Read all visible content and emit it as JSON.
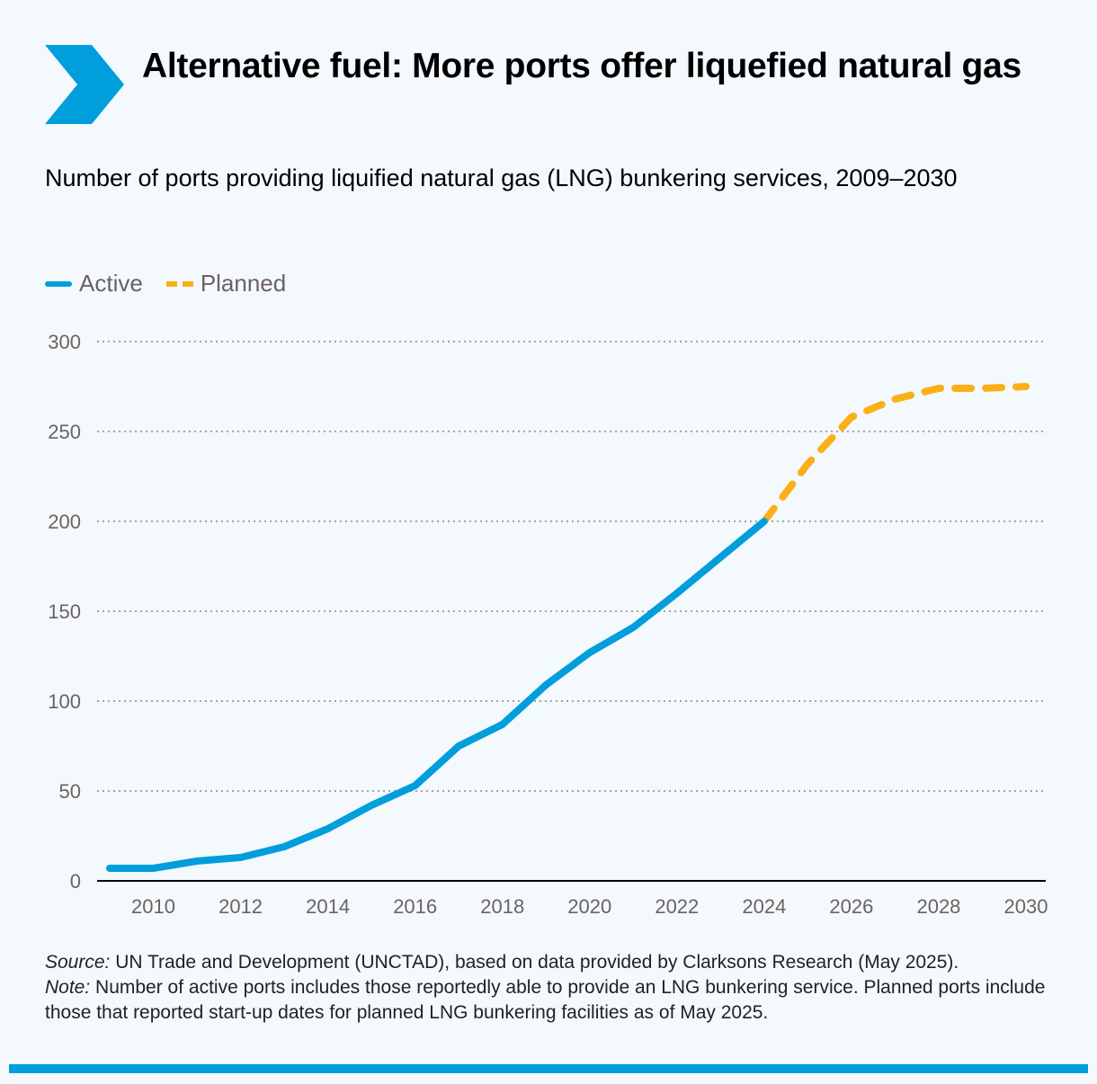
{
  "title": "Alternative fuel: More ports offer liquefied natural gas",
  "subtitle": "Number of ports providing liquified natural gas (LNG) bunkering services, 2009–2030",
  "colors": {
    "active": "#009edb",
    "planned": "#fbb017",
    "background": "#f4f9fd",
    "grid": "#a8a29e"
  },
  "notes": {
    "source_label": "Source:",
    "source_text": " UN Trade and Development (UNCTAD), based on data provided by Clarksons Research (May 2025).",
    "note_label": "Note:",
    "note_text": " Number of active ports includes those reportedly able to provide an LNG bunkering service. Planned ports include those that reported start-up dates for planned LNG bunkering facilities as of May 2025."
  },
  "chart_data": {
    "type": "line",
    "title": "Number of ports providing liquified natural gas (LNG) bunkering services, 2009–2030",
    "xlabel": "",
    "ylabel": "",
    "xlim": [
      2009,
      2030
    ],
    "ylim": [
      0,
      300
    ],
    "yticks": [
      "0",
      "50",
      "100",
      "150",
      "200",
      "250",
      "300"
    ],
    "xticks": [
      "2010",
      "2012",
      "2014",
      "2016",
      "2018",
      "2020",
      "2022",
      "2024",
      "2026",
      "2028",
      "2030"
    ],
    "grid": "horizontal dotted",
    "legend_placement": "top-left",
    "series": [
      {
        "name": "Active",
        "style": "solid",
        "x": [
          2009,
          2010,
          2011,
          2012,
          2013,
          2014,
          2015,
          2016,
          2017,
          2018,
          2019,
          2020,
          2021,
          2022,
          2023,
          2024
        ],
        "values": [
          7,
          7,
          11,
          13,
          19,
          29,
          42,
          53,
          75,
          87,
          109,
          127,
          141,
          160,
          180,
          200
        ]
      },
      {
        "name": "Planned",
        "style": "dashed",
        "x": [
          2024,
          2025,
          2026,
          2027,
          2028,
          2029,
          2030
        ],
        "values": [
          200,
          232,
          258,
          268,
          274,
          274,
          275
        ]
      }
    ]
  }
}
